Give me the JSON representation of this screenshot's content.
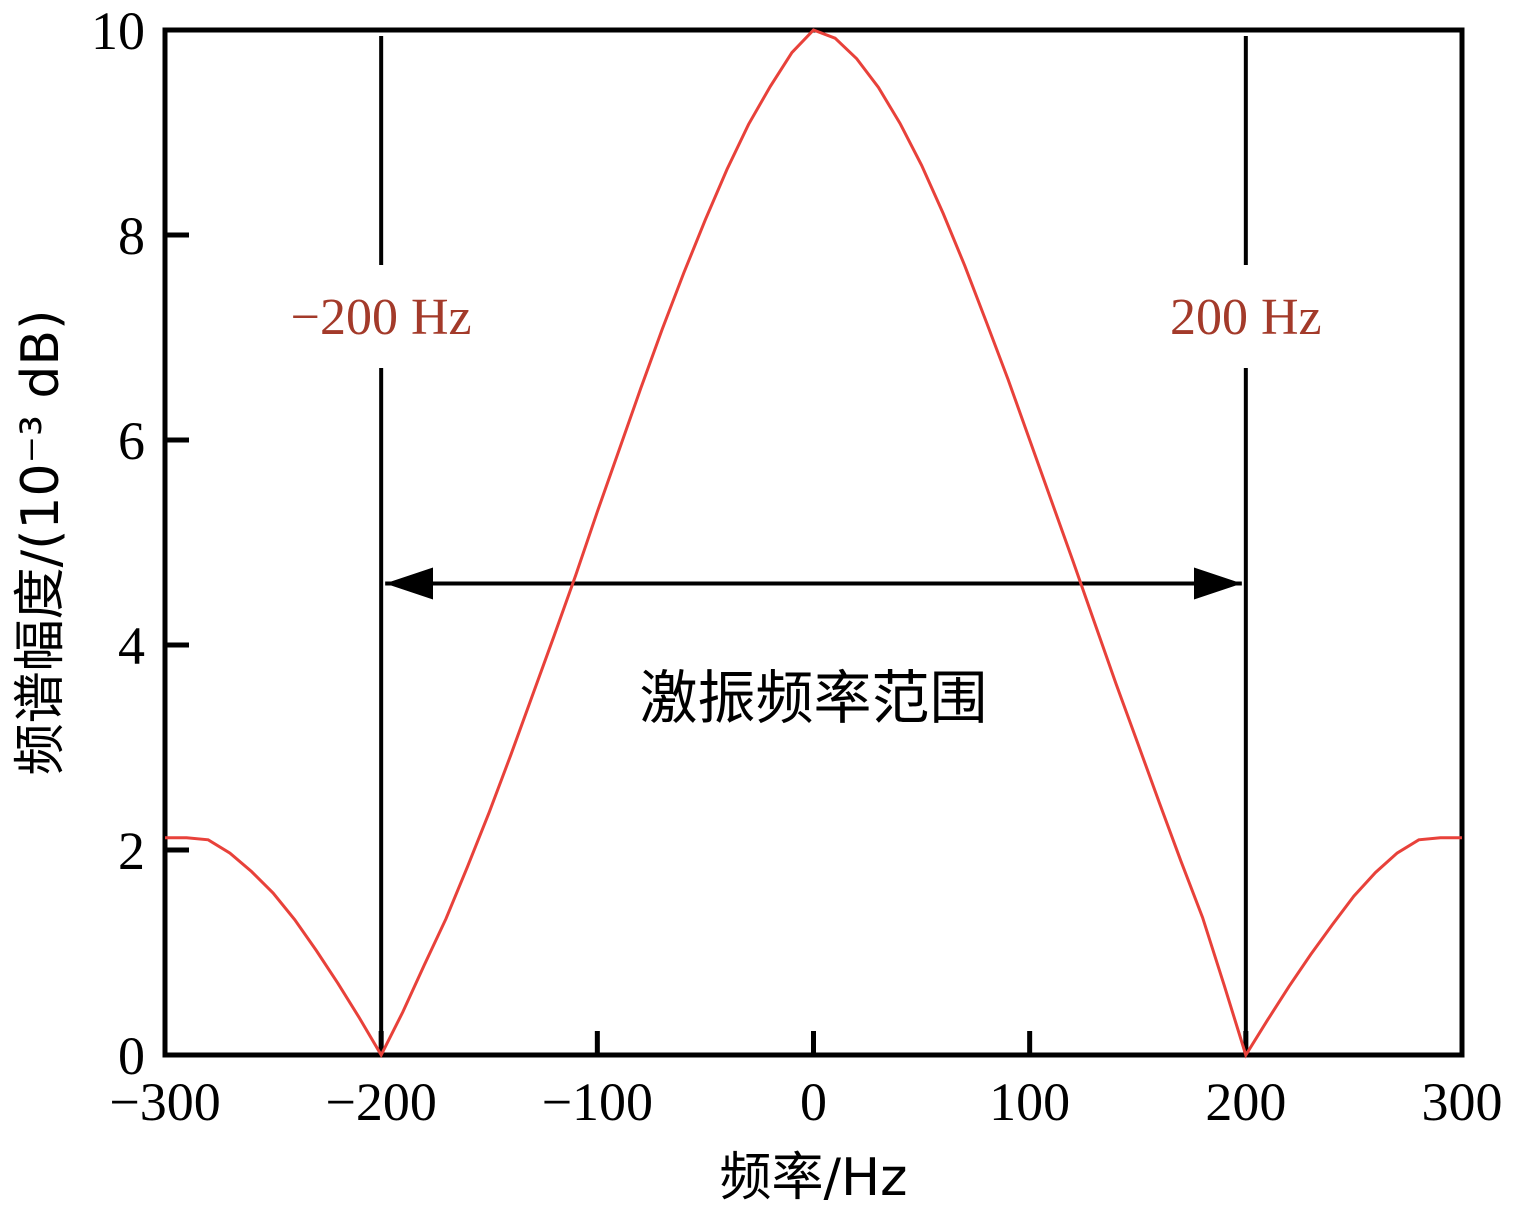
{
  "chart_data": {
    "type": "line",
    "xlabel": "频率/Hz",
    "ylabel": "频谱幅度/(10⁻³ dB)",
    "xlim": [
      -300,
      300
    ],
    "ylim": [
      0,
      10
    ],
    "xticks": [
      -300,
      -200,
      -100,
      0,
      100,
      200,
      300
    ],
    "yticks": [
      0,
      2,
      4,
      6,
      8,
      10
    ],
    "xtick_labels": [
      "−300",
      "−200",
      "−100",
      "0",
      "100",
      "200",
      "300"
    ],
    "ytick_labels": [
      "0",
      "2",
      "4",
      "6",
      "8",
      "10"
    ],
    "grid": false,
    "series": [
      {
        "color": "#e8413a",
        "x": [
          -300,
          -290,
          -280,
          -270,
          -260,
          -250,
          -240,
          -230,
          -220,
          -210,
          -200,
          -190,
          -180,
          -170,
          -160,
          -150,
          -140,
          -130,
          -120,
          -110,
          -100,
          -90,
          -80,
          -70,
          -60,
          -50,
          -40,
          -30,
          -20,
          -10,
          0,
          10,
          20,
          30,
          40,
          50,
          60,
          70,
          80,
          90,
          100,
          110,
          120,
          130,
          140,
          150,
          160,
          170,
          180,
          190,
          200,
          210,
          220,
          230,
          240,
          250,
          260,
          270,
          280,
          290,
          300
        ],
        "y": [
          2.12,
          2.12,
          2.1,
          1.97,
          1.79,
          1.58,
          1.32,
          1.02,
          0.7,
          0.36,
          0.0,
          0.42,
          0.88,
          1.33,
          1.84,
          2.37,
          2.93,
          3.51,
          4.09,
          4.68,
          5.3,
          5.9,
          6.5,
          7.08,
          7.63,
          8.15,
          8.64,
          9.08,
          9.45,
          9.78,
          10.0,
          9.92,
          9.72,
          9.44,
          9.09,
          8.68,
          8.21,
          7.7,
          7.15,
          6.59,
          6.0,
          5.41,
          4.82,
          4.22,
          3.62,
          3.04,
          2.46,
          1.89,
          1.34,
          0.68,
          0.0,
          0.34,
          0.67,
          0.98,
          1.27,
          1.55,
          1.78,
          1.97,
          2.1,
          2.12,
          2.12
        ]
      }
    ],
    "annotations": [
      {
        "text": "−200 Hz",
        "x": -200,
        "color": "#a33a2a"
      },
      {
        "text": "200 Hz",
        "x": 200,
        "color": "#a33a2a"
      },
      {
        "text": "激振频率范围",
        "x_range": [
          -200,
          200
        ],
        "y": 4.6
      }
    ]
  }
}
